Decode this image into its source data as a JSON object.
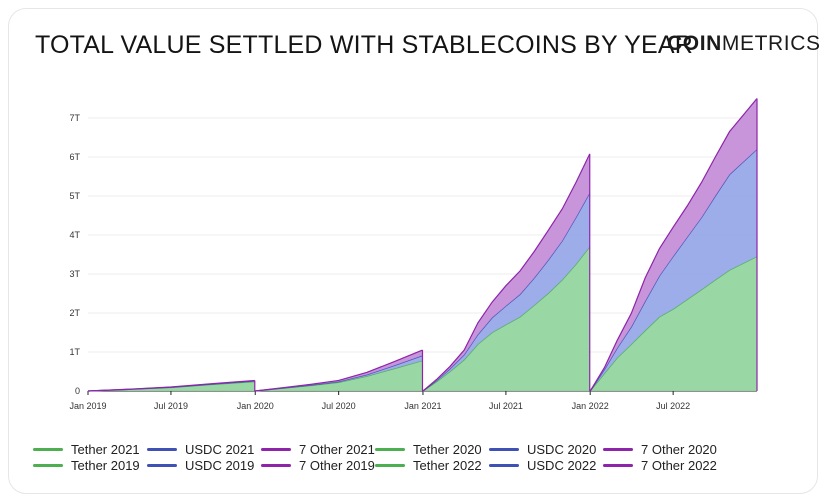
{
  "header": {
    "title": "TOTAL VALUE SETTLED WITH STABLECOINS BY YEAR",
    "brand_bold": "COIN",
    "brand_light": "METRICS"
  },
  "colors": {
    "tether": "#4caf50",
    "tether_fill": "#93d6a0",
    "usdc": "#3f51b5",
    "usdc_fill": "#97a9e8",
    "other": "#8e24aa",
    "other_fill": "#c58fd8",
    "grid": "#ececec",
    "axis": "#222222"
  },
  "legend": {
    "rows": [
      [
        {
          "label": "Tether 2021",
          "color": "#4caf50"
        },
        {
          "label": "USDC 2021",
          "color": "#3f51b5"
        },
        {
          "label": "7 Other 2021",
          "color": "#8e24aa"
        },
        {
          "label": "Tether 2020",
          "color": "#4caf50"
        },
        {
          "label": "USDC 2020",
          "color": "#3f51b5"
        },
        {
          "label": "7 Other 2020",
          "color": "#8e24aa"
        }
      ],
      [
        {
          "label": "Tether 2019",
          "color": "#4caf50"
        },
        {
          "label": "USDC 2019",
          "color": "#3f51b5"
        },
        {
          "label": "7 Other 2019",
          "color": "#8e24aa"
        },
        {
          "label": "Tether 2022",
          "color": "#4caf50"
        },
        {
          "label": "USDC 2022",
          "color": "#3f51b5"
        },
        {
          "label": "7 Other 2022",
          "color": "#8e24aa"
        }
      ]
    ]
  },
  "chart_data": {
    "type": "area",
    "stacked": true,
    "title": "TOTAL VALUE SETTLED WITH STABLECOINS BY YEAR",
    "xlabel": "",
    "ylabel": "",
    "xlim": [
      "2019-01-01",
      "2022-12-31"
    ],
    "ylim": [
      0,
      7
    ],
    "grid": true,
    "legend_position": "bottom",
    "y_ticks": [
      0,
      1,
      2,
      3,
      4,
      5,
      6,
      7
    ],
    "y_tick_labels": [
      "0",
      "1T",
      "2T",
      "3T",
      "4T",
      "5T",
      "6T",
      "7T"
    ],
    "x_ticks": [
      "2019-01-01",
      "2019-07-01",
      "2020-01-01",
      "2020-07-01",
      "2021-01-01",
      "2021-07-01",
      "2022-01-01",
      "2022-07-01"
    ],
    "x_tick_labels": [
      "Jan 2019",
      "Jul 2019",
      "Jan 2020",
      "Jul 2020",
      "Jan 2021",
      "Jul 2021",
      "Jan 2022",
      "Jul 2022"
    ],
    "segments": [
      {
        "year": "2019",
        "series": [
          {
            "name": "Tether 2019",
            "stack": "tether",
            "points": [
              [
                "2019-01-01",
                0
              ],
              [
                "2019-04-01",
                0.04
              ],
              [
                "2019-07-01",
                0.09
              ],
              [
                "2019-10-01",
                0.17
              ],
              [
                "2019-12-31",
                0.24
              ]
            ]
          },
          {
            "name": "USDC 2019",
            "stack": "usdc",
            "points": [
              [
                "2019-01-01",
                0
              ],
              [
                "2019-04-01",
                0.003
              ],
              [
                "2019-07-01",
                0.006
              ],
              [
                "2019-10-01",
                0.01
              ],
              [
                "2019-12-31",
                0.015
              ]
            ]
          },
          {
            "name": "7 Other 2019",
            "stack": "other",
            "points": [
              [
                "2019-01-01",
                0
              ],
              [
                "2019-04-01",
                0.003
              ],
              [
                "2019-07-01",
                0.006
              ],
              [
                "2019-10-01",
                0.01
              ],
              [
                "2019-12-31",
                0.015
              ]
            ]
          }
        ]
      },
      {
        "year": "2020",
        "series": [
          {
            "name": "Tether 2020",
            "stack": "tether",
            "points": [
              [
                "2020-01-01",
                0
              ],
              [
                "2020-03-01",
                0.07
              ],
              [
                "2020-05-01",
                0.14
              ],
              [
                "2020-07-01",
                0.22
              ],
              [
                "2020-09-01",
                0.38
              ],
              [
                "2020-11-01",
                0.58
              ],
              [
                "2020-12-31",
                0.78
              ]
            ]
          },
          {
            "name": "USDC 2020",
            "stack": "usdc",
            "points": [
              [
                "2020-01-01",
                0
              ],
              [
                "2020-03-01",
                0.005
              ],
              [
                "2020-05-01",
                0.01
              ],
              [
                "2020-07-01",
                0.02
              ],
              [
                "2020-09-01",
                0.04
              ],
              [
                "2020-11-01",
                0.08
              ],
              [
                "2020-12-31",
                0.13
              ]
            ]
          },
          {
            "name": "7 Other 2020",
            "stack": "other",
            "points": [
              [
                "2020-01-01",
                0
              ],
              [
                "2020-03-01",
                0.01
              ],
              [
                "2020-05-01",
                0.02
              ],
              [
                "2020-07-01",
                0.03
              ],
              [
                "2020-09-01",
                0.06
              ],
              [
                "2020-11-01",
                0.1
              ],
              [
                "2020-12-31",
                0.14
              ]
            ]
          }
        ]
      },
      {
        "year": "2021",
        "series": [
          {
            "name": "Tether 2021",
            "stack": "tether",
            "points": [
              [
                "2021-01-01",
                0
              ],
              [
                "2021-02-01",
                0.25
              ],
              [
                "2021-03-01",
                0.5
              ],
              [
                "2021-04-01",
                0.8
              ],
              [
                "2021-05-01",
                1.2
              ],
              [
                "2021-06-01",
                1.5
              ],
              [
                "2021-07-01",
                1.7
              ],
              [
                "2021-08-01",
                1.9
              ],
              [
                "2021-09-01",
                2.2
              ],
              [
                "2021-10-01",
                2.5
              ],
              [
                "2021-11-01",
                2.85
              ],
              [
                "2021-12-01",
                3.25
              ],
              [
                "2021-12-31",
                3.7
              ]
            ]
          },
          {
            "name": "USDC 2021",
            "stack": "usdc",
            "points": [
              [
                "2021-01-01",
                0
              ],
              [
                "2021-02-01",
                0.03
              ],
              [
                "2021-03-01",
                0.07
              ],
              [
                "2021-04-01",
                0.13
              ],
              [
                "2021-05-01",
                0.25
              ],
              [
                "2021-06-01",
                0.38
              ],
              [
                "2021-07-01",
                0.48
              ],
              [
                "2021-08-01",
                0.58
              ],
              [
                "2021-09-01",
                0.7
              ],
              [
                "2021-10-01",
                0.85
              ],
              [
                "2021-11-01",
                1.0
              ],
              [
                "2021-12-01",
                1.2
              ],
              [
                "2021-12-31",
                1.38
              ]
            ]
          },
          {
            "name": "7 Other 2021",
            "stack": "other",
            "points": [
              [
                "2021-01-01",
                0
              ],
              [
                "2021-02-01",
                0.03
              ],
              [
                "2021-03-01",
                0.06
              ],
              [
                "2021-04-01",
                0.12
              ],
              [
                "2021-05-01",
                0.3
              ],
              [
                "2021-06-01",
                0.4
              ],
              [
                "2021-07-01",
                0.52
              ],
              [
                "2021-08-01",
                0.6
              ],
              [
                "2021-09-01",
                0.68
              ],
              [
                "2021-10-01",
                0.76
              ],
              [
                "2021-11-01",
                0.82
              ],
              [
                "2021-12-01",
                0.9
              ],
              [
                "2021-12-31",
                1.0
              ]
            ]
          }
        ]
      },
      {
        "year": "2022",
        "series": [
          {
            "name": "Tether 2022",
            "stack": "tether",
            "points": [
              [
                "2022-01-01",
                0
              ],
              [
                "2022-02-01",
                0.45
              ],
              [
                "2022-03-01",
                0.85
              ],
              [
                "2022-04-01",
                1.2
              ],
              [
                "2022-05-01",
                1.55
              ],
              [
                "2022-06-01",
                1.9
              ],
              [
                "2022-07-01",
                2.1
              ],
              [
                "2022-08-01",
                2.35
              ],
              [
                "2022-09-01",
                2.6
              ],
              [
                "2022-10-01",
                2.85
              ],
              [
                "2022-11-01",
                3.1
              ],
              [
                "2022-12-31",
                3.45
              ]
            ]
          },
          {
            "name": "USDC 2022",
            "stack": "usdc",
            "points": [
              [
                "2022-01-01",
                0
              ],
              [
                "2022-02-01",
                0.1
              ],
              [
                "2022-03-01",
                0.25
              ],
              [
                "2022-04-01",
                0.45
              ],
              [
                "2022-05-01",
                0.75
              ],
              [
                "2022-06-01",
                1.05
              ],
              [
                "2022-07-01",
                1.35
              ],
              [
                "2022-08-01",
                1.6
              ],
              [
                "2022-09-01",
                1.85
              ],
              [
                "2022-10-01",
                2.15
              ],
              [
                "2022-11-01",
                2.45
              ],
              [
                "2022-12-31",
                2.75
              ]
            ]
          },
          {
            "name": "7 Other 2022",
            "stack": "other",
            "points": [
              [
                "2022-01-01",
                0
              ],
              [
                "2022-02-01",
                0.05
              ],
              [
                "2022-03-01",
                0.2
              ],
              [
                "2022-04-01",
                0.35
              ],
              [
                "2022-05-01",
                0.6
              ],
              [
                "2022-06-01",
                0.7
              ],
              [
                "2022-07-01",
                0.75
              ],
              [
                "2022-08-01",
                0.8
              ],
              [
                "2022-09-01",
                0.9
              ],
              [
                "2022-10-01",
                1.0
              ],
              [
                "2022-11-01",
                1.1
              ],
              [
                "2022-12-31",
                1.3
              ]
            ]
          }
        ]
      }
    ]
  }
}
